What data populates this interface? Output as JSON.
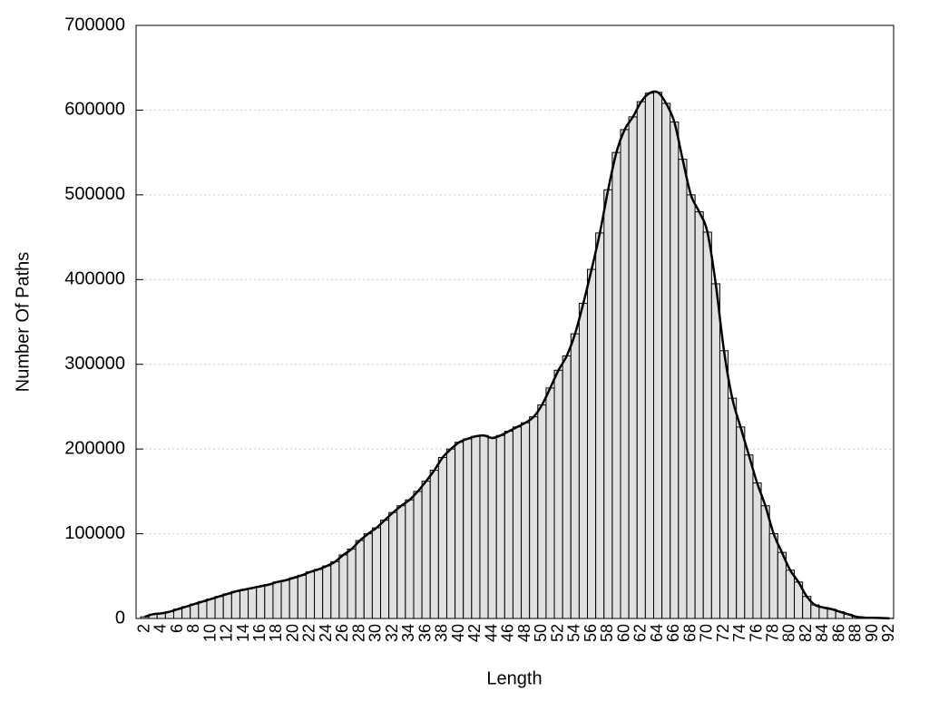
{
  "chart_data": {
    "type": "bar",
    "x_label": "Length",
    "y_label": "Number Of Paths",
    "categories": [
      "2",
      null,
      "4",
      null,
      "6",
      null,
      "8",
      null,
      "10",
      null,
      "12",
      null,
      "14",
      null,
      "16",
      null,
      "18",
      null,
      "20",
      null,
      "22",
      null,
      "24",
      null,
      "26",
      null,
      "28",
      null,
      "30",
      null,
      "32",
      null,
      "34",
      null,
      "36",
      null,
      "38",
      null,
      "40",
      null,
      "42",
      null,
      "44",
      null,
      "46",
      null,
      "48",
      null,
      "50",
      null,
      "52",
      null,
      "54",
      null,
      "56",
      null,
      "58",
      null,
      "60",
      null,
      "62",
      null,
      "64",
      null,
      "66",
      null,
      "68",
      null,
      "70",
      null,
      "72",
      null,
      "74",
      null,
      "76",
      null,
      "78",
      null,
      "80",
      null,
      "82",
      null,
      "84",
      null,
      "86",
      null,
      "88",
      null,
      "90",
      null,
      "92"
    ],
    "values": [
      2000,
      5000,
      6000,
      8000,
      11000,
      14000,
      17000,
      20000,
      23000,
      26000,
      29000,
      32000,
      34000,
      36000,
      38000,
      40000,
      43000,
      45000,
      48000,
      51000,
      55000,
      58000,
      62000,
      67000,
      75000,
      82000,
      92000,
      100000,
      107000,
      116000,
      125000,
      133000,
      140000,
      150000,
      162000,
      175000,
      190000,
      200000,
      208000,
      212000,
      215000,
      216000,
      213000,
      216000,
      221000,
      226000,
      231000,
      238000,
      252000,
      272000,
      293000,
      310000,
      336000,
      372000,
      412000,
      455000,
      506000,
      550000,
      577000,
      592000,
      610000,
      620000,
      621000,
      608000,
      586000,
      542000,
      500000,
      480000,
      456000,
      395000,
      316000,
      260000,
      226000,
      193000,
      160000,
      133000,
      100000,
      78000,
      57000,
      43000,
      26000,
      16000,
      13000,
      11000,
      8000,
      5000,
      2000,
      1000,
      800,
      500,
      200
    ],
    "color": "#e0e0e0",
    "line_color": "#000000",
    "ylim": [
      0,
      700000
    ],
    "yticks": [
      0,
      100000,
      200000,
      300000,
      400000,
      500000,
      600000,
      700000
    ],
    "grid": true
  }
}
